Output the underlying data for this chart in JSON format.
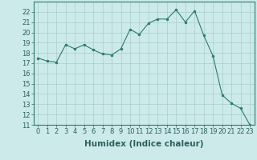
{
  "x": [
    0,
    1,
    2,
    3,
    4,
    5,
    6,
    7,
    8,
    9,
    10,
    11,
    12,
    13,
    14,
    15,
    16,
    17,
    18,
    19,
    20,
    21,
    22,
    23
  ],
  "y": [
    17.5,
    17.2,
    17.1,
    18.8,
    18.4,
    18.8,
    18.3,
    17.9,
    17.8,
    18.4,
    20.3,
    19.8,
    20.9,
    21.3,
    21.3,
    22.2,
    21.0,
    22.1,
    19.7,
    17.7,
    13.9,
    13.1,
    12.6,
    11.0
  ],
  "line_color": "#2d7a6e",
  "marker": "o",
  "marker_size": 2,
  "bg_color": "#cceaea",
  "grid_color": "#aacccc",
  "xlabel": "Humidex (Indice chaleur)",
  "xlabel_fontsize": 7.5,
  "tick_fontsize": 6,
  "ylim": [
    11,
    23
  ],
  "xlim": [
    -0.5,
    23.5
  ],
  "yticks": [
    11,
    12,
    13,
    14,
    15,
    16,
    17,
    18,
    19,
    20,
    21,
    22
  ],
  "xticks": [
    0,
    1,
    2,
    3,
    4,
    5,
    6,
    7,
    8,
    9,
    10,
    11,
    12,
    13,
    14,
    15,
    16,
    17,
    18,
    19,
    20,
    21,
    22,
    23
  ]
}
